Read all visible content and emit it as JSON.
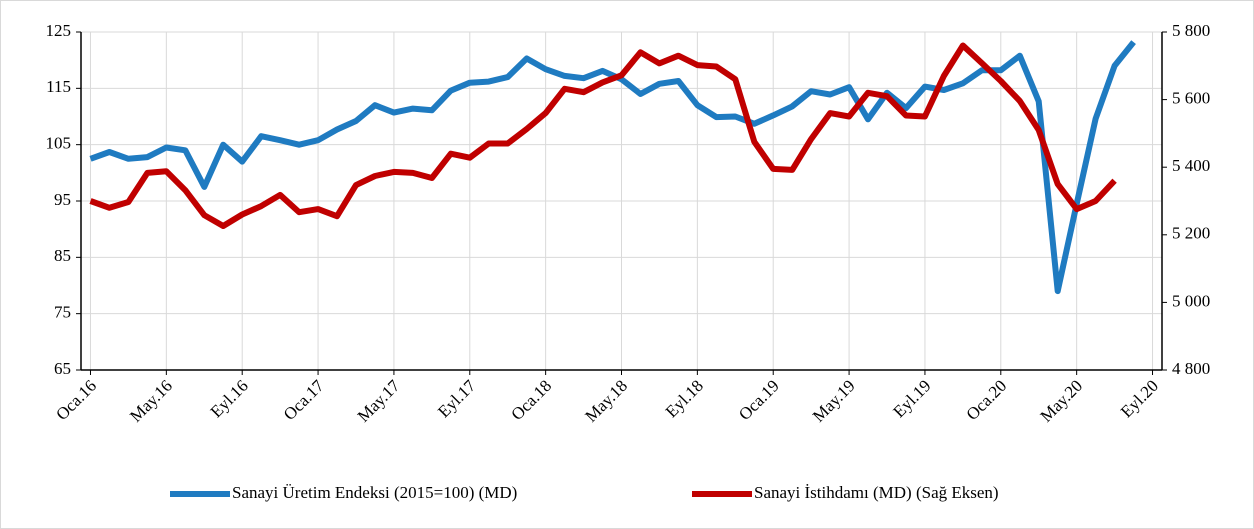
{
  "chart_data": {
    "type": "line",
    "categories": [
      "Oca.16",
      null,
      null,
      null,
      "May.16",
      null,
      null,
      null,
      "Eyl.16",
      null,
      null,
      null,
      "Oca.17",
      null,
      null,
      null,
      "May.17",
      null,
      null,
      null,
      "Eyl.17",
      null,
      null,
      null,
      "Oca.18",
      null,
      null,
      null,
      "May.18",
      null,
      null,
      null,
      "Eyl.18",
      null,
      null,
      null,
      "Oca.19",
      null,
      null,
      null,
      "May.19",
      null,
      null,
      null,
      "Eyl.19",
      null,
      null,
      null,
      "Oca.20",
      null,
      null,
      null,
      "May.20",
      null,
      null,
      null,
      "Eyl.20"
    ],
    "series": [
      {
        "name": "Sanayi Üretim Endeksi (2015=100) (MD)",
        "color": "#1f7bc1",
        "values": [
          102.5,
          103.7,
          102.5,
          102.8,
          104.5,
          104.0,
          97.5,
          105.0,
          102.0,
          106.5,
          105.8,
          105.0,
          105.8,
          107.7,
          109.2,
          112.0,
          110.7,
          111.4,
          111.1,
          114.6,
          116.0,
          116.2,
          117.0,
          120.3,
          118.4,
          117.2,
          116.8,
          118.1,
          116.6,
          114.0,
          115.8,
          116.3,
          112.0,
          109.9,
          110.0,
          108.7,
          110.2,
          111.8,
          114.5,
          113.9,
          115.2,
          109.5,
          114.2,
          111.5,
          115.3,
          114.7,
          115.9,
          118.2,
          118.2,
          120.8,
          112.7,
          79.0,
          94.5,
          109.6,
          119.0,
          123.2,
          null
        ]
      },
      {
        "name": "Sanayi İstihdamı (MD) (Sağ Eksen)",
        "color": "#c00000",
        "axis": "y2",
        "values": [
          5300,
          5280,
          5297,
          5383,
          5388,
          5332,
          5258,
          5226,
          5260,
          5285,
          5318,
          5267,
          5276,
          5255,
          5347,
          5374,
          5386,
          5383,
          5368,
          5440,
          5428,
          5470,
          5470,
          5513,
          5560,
          5632,
          5622,
          5651,
          5672,
          5740,
          5707,
          5730,
          5702,
          5698,
          5660,
          5475,
          5395,
          5392,
          5483,
          5560,
          5550,
          5620,
          5610,
          5553,
          5550,
          5670,
          5760,
          5708,
          5655,
          5596,
          5510,
          5350,
          5276,
          5300,
          5360,
          null,
          null
        ]
      }
    ],
    "ylim": [
      65,
      125
    ],
    "yticks": [
      65,
      75,
      85,
      95,
      105,
      115,
      125
    ],
    "y2lim": [
      4800,
      5800
    ],
    "y2ticks": [
      {
        "value": 4800,
        "label": "4 800"
      },
      {
        "value": 5000,
        "label": "5 000"
      },
      {
        "value": 5200,
        "label": "5 200"
      },
      {
        "value": 5400,
        "label": "5 400"
      },
      {
        "value": 5600,
        "label": "5 600"
      },
      {
        "value": 5800,
        "label": "5 800"
      }
    ],
    "grid": true,
    "legend": "bottom"
  }
}
